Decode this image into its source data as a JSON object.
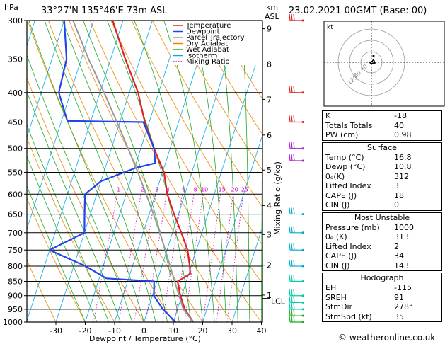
{
  "header": {
    "location": "33°27'N  135°46'E  73m  ASL",
    "datetime": "23.02.2021  00GMT  (Base: 00)",
    "hpa_label": "hPa",
    "km_label": "km",
    "asl_label": "ASL"
  },
  "chart_data": {
    "type": "skew-t",
    "xlabel": "Dewpoint / Temperature (°C)",
    "right_axis_label": "Mixing Ratio (g/kg)",
    "pressure_levels": [
      300,
      350,
      400,
      450,
      500,
      550,
      600,
      650,
      700,
      750,
      800,
      850,
      900,
      950,
      1000
    ],
    "temperature_ticks": [
      -30,
      -20,
      -10,
      0,
      10,
      20,
      30,
      40
    ],
    "xlim": [
      -40,
      40
    ],
    "ylim_hpa": [
      1000,
      300
    ],
    "km_ticks": [
      {
        "label": "9",
        "p": 310
      },
      {
        "label": "8",
        "p": 357
      },
      {
        "label": "7",
        "p": 411
      },
      {
        "label": "6",
        "p": 474
      },
      {
        "label": "5",
        "p": 545
      },
      {
        "label": "4",
        "p": 628
      },
      {
        "label": "3",
        "p": 705
      },
      {
        "label": "2",
        "p": 797
      },
      {
        "label": "1",
        "p": 898
      }
    ],
    "lcl": {
      "label": "LCL",
      "p": 910
    },
    "mixing_ratio_labels": [
      "1",
      "2",
      "3",
      "4",
      "6",
      "8",
      "10",
      "15",
      "20",
      "25"
    ],
    "mixing_ratio_values": [
      1,
      2,
      3,
      4,
      6,
      8,
      10,
      15,
      20,
      25
    ],
    "legend": [
      {
        "name": "Temperature",
        "color": "#dd2222"
      },
      {
        "name": "Dewpoint",
        "color": "#2244ee"
      },
      {
        "name": "Parcel Trajectory",
        "color": "#999999"
      },
      {
        "name": "Dry Adiabat",
        "color": "#ee8800"
      },
      {
        "name": "Wet Adiabat",
        "color": "#22aa22"
      },
      {
        "name": "Isotherm",
        "color": "#00aaee"
      },
      {
        "name": "Mixing Ratio",
        "color": "#cc00cc"
      }
    ],
    "series": [
      {
        "name": "Temperature",
        "color": "#dd2222",
        "points": [
          [
            1000,
            16.8
          ],
          [
            950,
            12.5
          ],
          [
            900,
            9.5
          ],
          [
            850,
            7.0
          ],
          [
            825,
            10.5
          ],
          [
            800,
            9.5
          ],
          [
            750,
            7.0
          ],
          [
            700,
            3.0
          ],
          [
            650,
            -1.5
          ],
          [
            600,
            -6.0
          ],
          [
            550,
            -9.5
          ],
          [
            500,
            -15.5
          ],
          [
            450,
            -21.5
          ],
          [
            400,
            -27.0
          ],
          [
            350,
            -35.0
          ],
          [
            300,
            -43.5
          ]
        ]
      },
      {
        "name": "Dewpoint",
        "color": "#2244ee",
        "points": [
          [
            1000,
            10.8
          ],
          [
            950,
            5.0
          ],
          [
            900,
            0.5
          ],
          [
            850,
            -1.0
          ],
          [
            840,
            -17.5
          ],
          [
            800,
            -26.0
          ],
          [
            750,
            -40.0
          ],
          [
            700,
            -30.0
          ],
          [
            650,
            -32.0
          ],
          [
            600,
            -34.0
          ],
          [
            570,
            -30.0
          ],
          [
            540,
            -19.5
          ],
          [
            530,
            -13.5
          ],
          [
            500,
            -15.5
          ],
          [
            450,
            -22.0
          ],
          [
            448,
            -48.0
          ],
          [
            400,
            -54.0
          ],
          [
            350,
            -55.0
          ],
          [
            300,
            -60.0
          ]
        ]
      },
      {
        "name": "Parcel Trajectory",
        "color": "#999999",
        "points": [
          [
            1000,
            16.8
          ],
          [
            950,
            12.0
          ],
          [
            910,
            9.7
          ],
          [
            850,
            6.0
          ],
          [
            800,
            2.8
          ],
          [
            750,
            -0.6
          ],
          [
            700,
            -4.3
          ],
          [
            650,
            -8.5
          ],
          [
            600,
            -13.2
          ],
          [
            550,
            -18.4
          ],
          [
            500,
            -24.3
          ],
          [
            450,
            -31.0
          ],
          [
            400,
            -38.6
          ],
          [
            350,
            -47.5
          ],
          [
            300,
            -57.0
          ]
        ]
      }
    ],
    "wind_barbs": [
      {
        "p": 300,
        "color": "#dd2222"
      },
      {
        "p": 400,
        "color": "#dd2222"
      },
      {
        "p": 450,
        "color": "#dd2222"
      },
      {
        "p": 500,
        "color": "#aa22cc"
      },
      {
        "p": 525,
        "color": "#aa22cc"
      },
      {
        "p": 650,
        "color": "#00aacc"
      },
      {
        "p": 700,
        "color": "#00aacc"
      },
      {
        "p": 750,
        "color": "#00aacc"
      },
      {
        "p": 800,
        "color": "#00aacc"
      },
      {
        "p": 850,
        "color": "#00ccaa"
      },
      {
        "p": 900,
        "color": "#00ccaa"
      },
      {
        "p": 925,
        "color": "#00ccaa"
      },
      {
        "p": 950,
        "color": "#00ccaa"
      },
      {
        "p": 975,
        "color": "#22aa22"
      },
      {
        "p": 1000,
        "color": "#22aa22"
      }
    ],
    "hodograph": {
      "label": "kt",
      "ring_labels": [
        "40",
        "60",
        "120"
      ]
    }
  },
  "indices": {
    "top": [
      {
        "label": "K",
        "value": "-18"
      },
      {
        "label": "Totals Totals",
        "value": "40"
      },
      {
        "label": "PW (cm)",
        "value": "0.98"
      }
    ],
    "surface": {
      "title": "Surface",
      "rows": [
        {
          "label": "Temp (°C)",
          "value": "16.8"
        },
        {
          "label": "Dewp (°C)",
          "value": "10.8"
        },
        {
          "label": "θₑ(K)",
          "value": "312"
        },
        {
          "label": "Lifted Index",
          "value": "3"
        },
        {
          "label": "CAPE (J)",
          "value": "18"
        },
        {
          "label": "CIN (J)",
          "value": "0"
        }
      ]
    },
    "most_unstable": {
      "title": "Most Unstable",
      "rows": [
        {
          "label": "Pressure (mb)",
          "value": "1000"
        },
        {
          "label": "θₑ (K)",
          "value": "313"
        },
        {
          "label": "Lifted Index",
          "value": "2"
        },
        {
          "label": "CAPE (J)",
          "value": "34"
        },
        {
          "label": "CIN (J)",
          "value": "143"
        }
      ]
    },
    "hodograph_box": {
      "title": "Hodograph",
      "rows": [
        {
          "label": "EH",
          "value": "-115"
        },
        {
          "label": "SREH",
          "value": "91"
        },
        {
          "label": "StmDir",
          "value": "278°"
        },
        {
          "label": "StmSpd (kt)",
          "value": "35"
        }
      ]
    }
  },
  "footer": "© weatheronline.co.uk"
}
